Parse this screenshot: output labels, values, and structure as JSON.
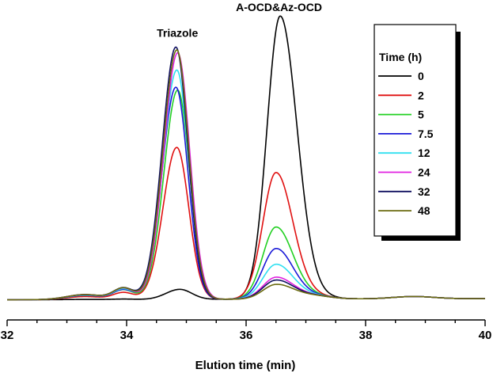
{
  "chart_data": {
    "type": "line",
    "title": "",
    "xlabel": "Elution time (min)",
    "ylabel": "",
    "xlim": [
      32,
      40
    ],
    "ylim": [
      0,
      1.0
    ],
    "x_ticks": [
      "32",
      "34",
      "36",
      "38",
      "40"
    ],
    "grid": false,
    "legend_position": "top-right",
    "legend_title": "Time (h)",
    "annotations": [
      {
        "text": "Triazole",
        "x": 34.85,
        "y": 0.905
      },
      {
        "text": "A-OCD&Az-OCD",
        "x": 36.55,
        "y": 0.995
      }
    ],
    "series": [
      {
        "name": "0",
        "color": "#000000",
        "triazole_peak": 0.035,
        "aocd_peak": 0.985
      },
      {
        "name": "2",
        "color": "#e01010",
        "triazole_peak": 0.53,
        "aocd_peak": 0.44
      },
      {
        "name": "5",
        "color": "#22d022",
        "triazole_peak": 0.73,
        "aocd_peak": 0.25
      },
      {
        "name": "7.5",
        "color": "#1a1ad8",
        "triazole_peak": 0.74,
        "aocd_peak": 0.175
      },
      {
        "name": "12",
        "color": "#30e0f0",
        "triazole_peak": 0.8,
        "aocd_peak": 0.12
      },
      {
        "name": "24",
        "color": "#e020e0",
        "triazole_peak": 0.86,
        "aocd_peak": 0.075
      },
      {
        "name": "32",
        "color": "#101060",
        "triazole_peak": 0.88,
        "aocd_peak": 0.065
      },
      {
        "name": "48",
        "color": "#6b6b10",
        "triazole_peak": 0.87,
        "aocd_peak": 0.05
      }
    ]
  }
}
